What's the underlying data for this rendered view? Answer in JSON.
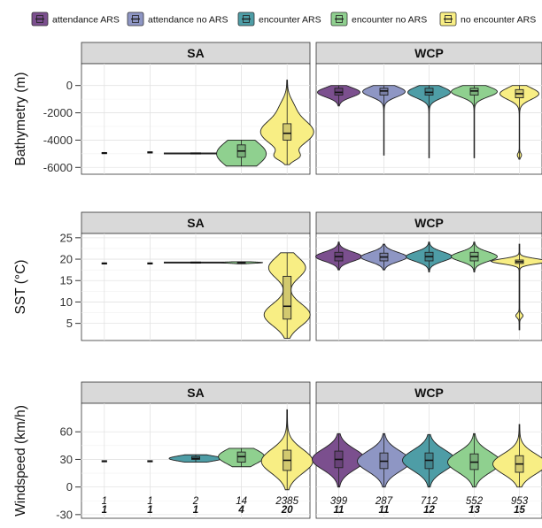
{
  "chart_data": {
    "type": "violin",
    "legend": {
      "placement": "top",
      "entries": [
        {
          "label": "attendance ARS",
          "color": "#7b4f8e"
        },
        {
          "label": "attendance no ARS",
          "color": "#8e96c4"
        },
        {
          "label": "encounter ARS",
          "color": "#4e9da6"
        },
        {
          "label": "encounter no ARS",
          "color": "#8fd08f"
        },
        {
          "label": "no encounter ARS",
          "color": "#f8ee84"
        }
      ]
    },
    "facets": [
      "SA",
      "WCP"
    ],
    "groups": [
      "attendance ARS",
      "attendance no ARS",
      "encounter ARS",
      "encounter no ARS",
      "no encounter ARS"
    ],
    "grid": true,
    "rows": [
      {
        "ylabel": "Bathymetry (m)",
        "ylim": [
          -6500,
          1600
        ],
        "yticks": [
          0,
          -2000,
          -4000,
          -6000
        ],
        "ytick_labels": [
          "0",
          "-2000",
          "-4000",
          "-6000"
        ],
        "panels": {
          "SA": [
            {
              "lo": -4950,
              "hi": -4950,
              "q1": -4950,
              "med": -4950,
              "q3": -4950,
              "halfw": 3,
              "peaks": []
            },
            {
              "lo": -4920,
              "hi": -4880,
              "q1": -4900,
              "med": -4900,
              "q3": -4900,
              "halfw": 3,
              "peaks": []
            },
            {
              "lo": -5000,
              "hi": -4950,
              "q1": -4990,
              "med": -4980,
              "q3": -4970,
              "halfw": 36,
              "peaks": []
            },
            {
              "lo": -5900,
              "hi": -4000,
              "q1": -5250,
              "med": -4800,
              "q3": -4350,
              "halfw": 28,
              "peaks": [
                {
                  "y": -5000,
                  "s": 900,
                  "w": 1
                }
              ]
            },
            {
              "lo": -5800,
              "hi": 400,
              "q1": -4000,
              "med": -3500,
              "q3": -2800,
              "halfw": 30,
              "peaks": [
                {
                  "y": -3400,
                  "s": 900,
                  "w": 1
                },
                {
                  "y": -5200,
                  "s": 300,
                  "w": 0.35
                },
                {
                  "y": -1500,
                  "s": 600,
                  "w": 0.18
                }
              ]
            }
          ],
          "WCP": [
            {
              "lo": -1500,
              "hi": 0,
              "q1": -700,
              "med": -500,
              "q3": -200,
              "halfw": 24,
              "peaks": [
                {
                  "y": -500,
                  "s": 350,
                  "w": 1
                }
              ]
            },
            {
              "lo": -5100,
              "hi": 0,
              "q1": -700,
              "med": -400,
              "q3": -200,
              "halfw": 24,
              "peaks": [
                {
                  "y": -450,
                  "s": 380,
                  "w": 1
                }
              ]
            },
            {
              "lo": -5300,
              "hi": 0,
              "q1": -700,
              "med": -500,
              "q3": -200,
              "halfw": 24,
              "peaks": [
                {
                  "y": -500,
                  "s": 400,
                  "w": 1
                }
              ]
            },
            {
              "lo": -5300,
              "hi": 0,
              "q1": -700,
              "med": -400,
              "q3": -200,
              "halfw": 26,
              "peaks": [
                {
                  "y": -450,
                  "s": 380,
                  "w": 1
                }
              ]
            },
            {
              "lo": -5400,
              "hi": 0,
              "q1": -900,
              "med": -600,
              "q3": -300,
              "halfw": 22,
              "peaks": [
                {
                  "y": -600,
                  "s": 420,
                  "w": 1
                },
                {
                  "y": -5100,
                  "s": 150,
                  "w": 0.1
                }
              ]
            }
          ]
        }
      },
      {
        "ylabel": "SST (°C)",
        "ylim": [
          1,
          26
        ],
        "yticks": [
          5,
          10,
          15,
          20,
          25
        ],
        "ytick_labels": [
          "5",
          "10",
          "15",
          "20",
          "25"
        ],
        "panels": {
          "SA": [
            {
              "lo": 19,
              "hi": 19,
              "q1": 19,
              "med": 19,
              "q3": 19,
              "halfw": 3,
              "peaks": []
            },
            {
              "lo": 19,
              "hi": 19,
              "q1": 19,
              "med": 19,
              "q3": 19,
              "halfw": 3,
              "peaks": []
            },
            {
              "lo": 19.1,
              "hi": 19.3,
              "q1": 19.2,
              "med": 19.2,
              "q3": 19.2,
              "halfw": 36,
              "peaks": []
            },
            {
              "lo": 18.9,
              "hi": 19.4,
              "q1": 19.1,
              "med": 19.2,
              "q3": 19.3,
              "halfw": 24,
              "peaks": [
                {
                  "y": 19.2,
                  "s": 0.15,
                  "w": 1
                }
              ]
            },
            {
              "lo": 1.5,
              "hi": 21.5,
              "q1": 6,
              "med": 9,
              "q3": 16,
              "halfw": 26,
              "peaks": [
                {
                  "y": 7,
                  "s": 2.6,
                  "w": 1
                },
                {
                  "y": 18,
                  "s": 2.4,
                  "w": 0.8
                }
              ]
            }
          ],
          "WCP": [
            {
              "lo": 17.5,
              "hi": 24,
              "q1": 19.6,
              "med": 20.6,
              "q3": 21.6,
              "halfw": 26,
              "peaks": [
                {
                  "y": 20.6,
                  "s": 1.1,
                  "w": 1
                }
              ]
            },
            {
              "lo": 17.5,
              "hi": 23.5,
              "q1": 19.6,
              "med": 20.5,
              "q3": 21.4,
              "halfw": 26,
              "peaks": [
                {
                  "y": 20.5,
                  "s": 1.1,
                  "w": 1
                }
              ]
            },
            {
              "lo": 17,
              "hi": 24,
              "q1": 19.6,
              "med": 20.6,
              "q3": 21.6,
              "halfw": 26,
              "peaks": [
                {
                  "y": 20.6,
                  "s": 1.1,
                  "w": 1
                }
              ]
            },
            {
              "lo": 17,
              "hi": 24,
              "q1": 19.6,
              "med": 20.6,
              "q3": 21.6,
              "halfw": 26,
              "peaks": [
                {
                  "y": 20.6,
                  "s": 1.1,
                  "w": 1
                }
              ]
            },
            {
              "lo": 3.5,
              "hi": 23.5,
              "q1": 19,
              "med": 19.4,
              "q3": 19.8,
              "halfw": 32,
              "peaks": [
                {
                  "y": 19.5,
                  "s": 0.6,
                  "w": 1
                },
                {
                  "y": 6.8,
                  "s": 0.5,
                  "w": 0.12
                }
              ]
            }
          ]
        }
      },
      {
        "ylabel": "Windspeed (km/h)",
        "ylim": [
          -34,
          91
        ],
        "yticks": [
          -30,
          0,
          30,
          60
        ],
        "ytick_labels": [
          "-30",
          "0",
          "30",
          "60"
        ],
        "panels": {
          "SA": [
            {
              "lo": 28,
              "hi": 28,
              "q1": 28,
              "med": 28,
              "q3": 28,
              "halfw": 3,
              "peaks": []
            },
            {
              "lo": 28,
              "hi": 28,
              "q1": 28,
              "med": 28,
              "q3": 28,
              "halfw": 3,
              "peaks": []
            },
            {
              "lo": 27,
              "hi": 35,
              "q1": 30,
              "med": 31,
              "q3": 33,
              "halfw": 30,
              "peaks": [
                {
                  "y": 31,
                  "s": 3,
                  "w": 1
                }
              ]
            },
            {
              "lo": 22,
              "hi": 42,
              "q1": 27,
              "med": 33,
              "q3": 38,
              "halfw": 26,
              "peaks": [
                {
                  "y": 33,
                  "s": 8,
                  "w": 1
                }
              ]
            },
            {
              "lo": -3,
              "hi": 84,
              "q1": 18,
              "med": 29,
              "q3": 40,
              "halfw": 29,
              "peaks": [
                {
                  "y": 28,
                  "s": 13,
                  "w": 1
                }
              ]
            }
          ],
          "WCP": [
            {
              "lo": 0,
              "hi": 58,
              "q1": 21,
              "med": 30,
              "q3": 39,
              "halfw": 30,
              "peaks": [
                {
                  "y": 30,
                  "s": 11,
                  "w": 1
                }
              ]
            },
            {
              "lo": 0,
              "hi": 58,
              "q1": 20,
              "med": 28,
              "q3": 37,
              "halfw": 30,
              "peaks": [
                {
                  "y": 28,
                  "s": 11,
                  "w": 1
                }
              ]
            },
            {
              "lo": 0,
              "hi": 57,
              "q1": 20,
              "med": 29,
              "q3": 37,
              "halfw": 30,
              "peaks": [
                {
                  "y": 29,
                  "s": 11,
                  "w": 1
                }
              ]
            },
            {
              "lo": 0,
              "hi": 58,
              "q1": 19,
              "med": 27,
              "q3": 36,
              "halfw": 30,
              "peaks": [
                {
                  "y": 27,
                  "s": 11,
                  "w": 1
                }
              ]
            },
            {
              "lo": 0,
              "hi": 68,
              "q1": 16,
              "med": 25,
              "q3": 34,
              "halfw": 30,
              "peaks": [
                {
                  "y": 25,
                  "s": 11,
                  "w": 1
                }
              ]
            }
          ]
        },
        "counts": {
          "SA": {
            "top": [
              "1",
              "1",
              "2",
              "14",
              "2385"
            ],
            "bottom": [
              "1",
              "1",
              "1",
              "4",
              "20"
            ]
          },
          "WCP": {
            "top": [
              "399",
              "287",
              "712",
              "552",
              "953"
            ],
            "bottom": [
              "11",
              "11",
              "12",
              "13",
              "15"
            ]
          }
        }
      }
    ]
  }
}
